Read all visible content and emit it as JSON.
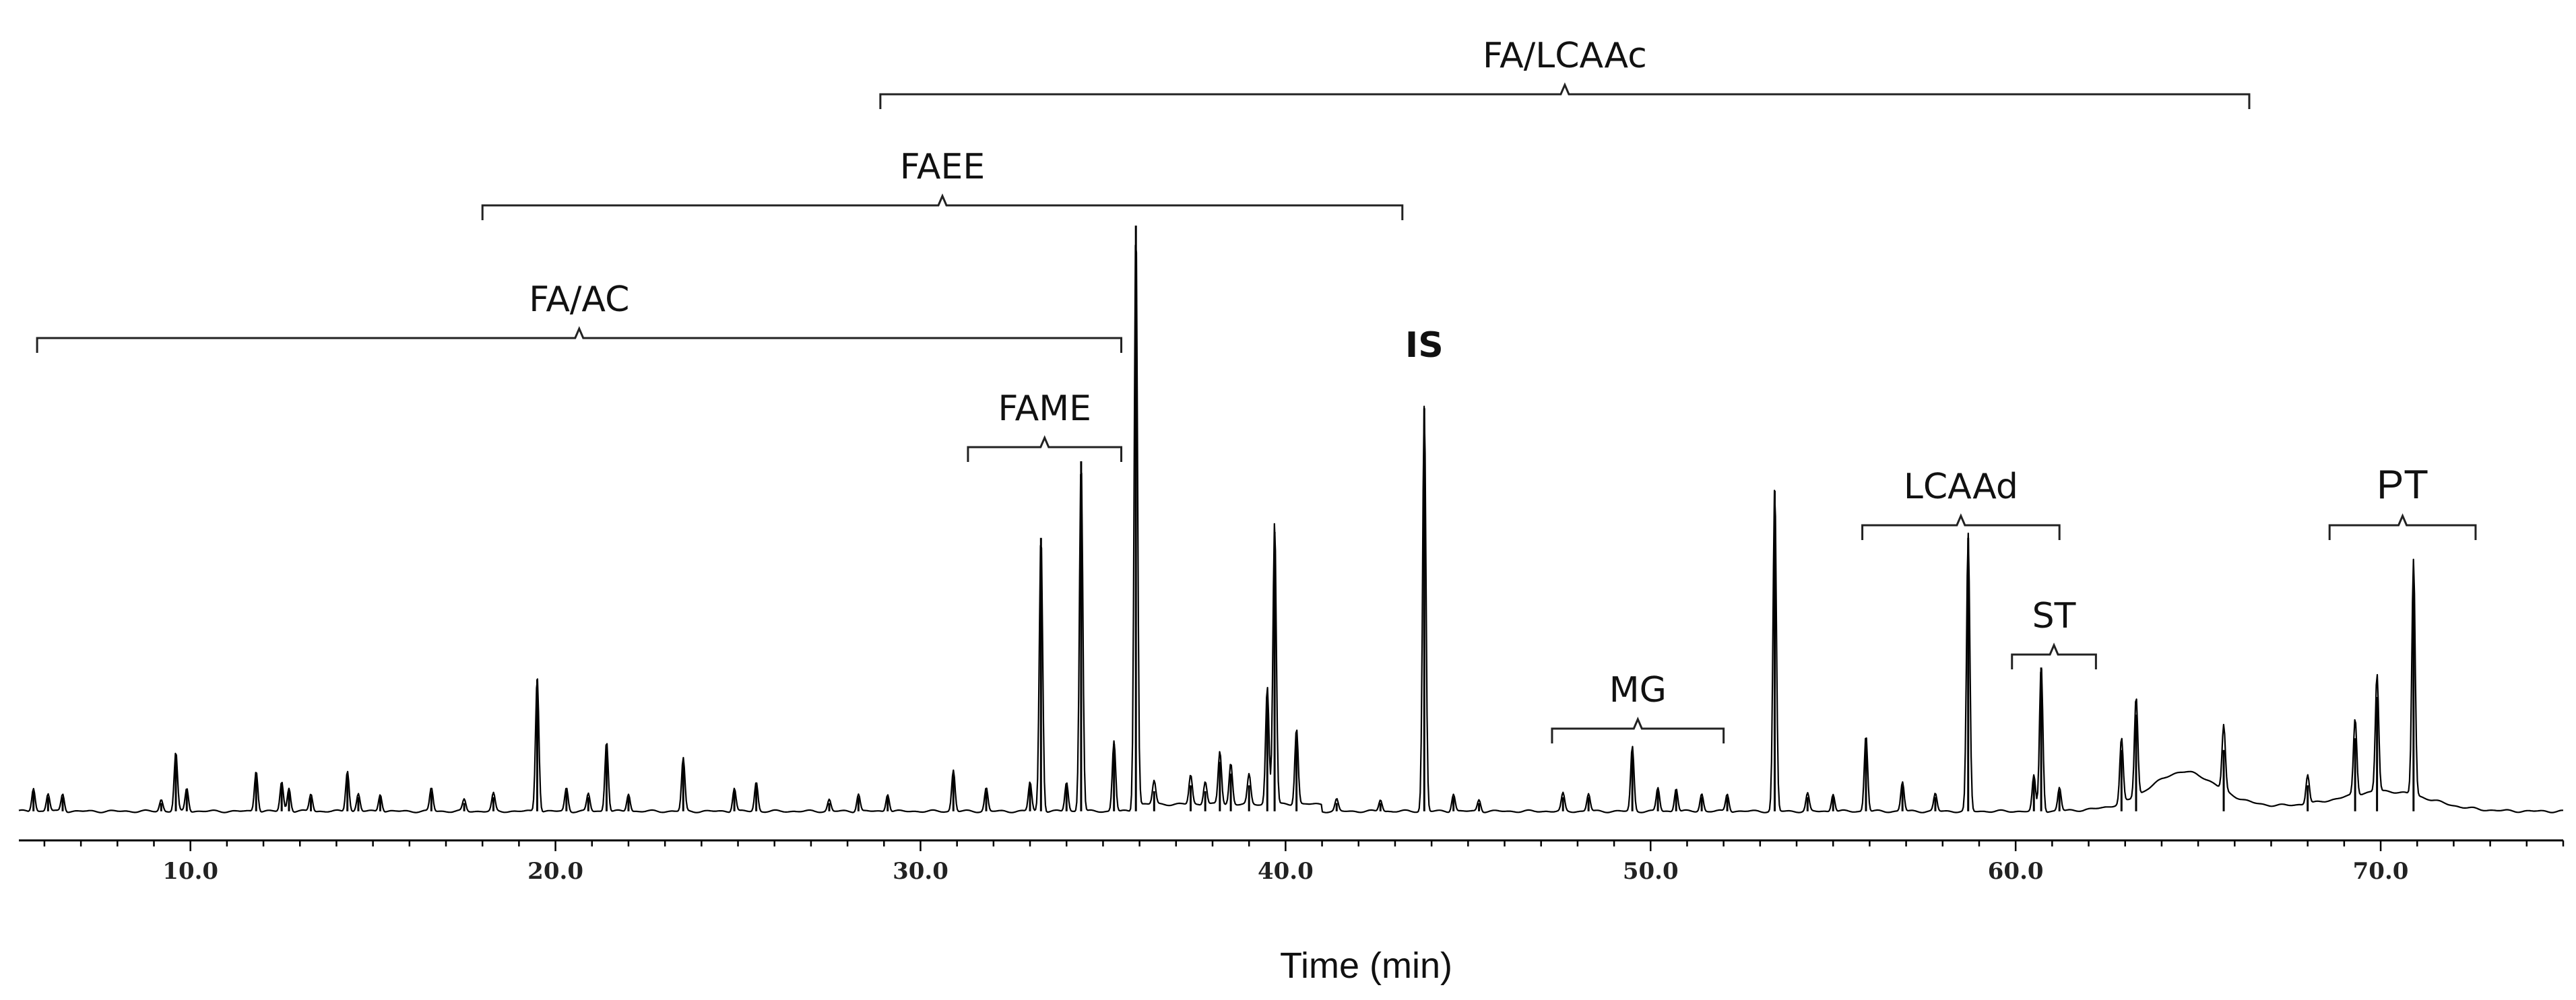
{
  "chart_data": {
    "type": "line",
    "title": "",
    "xlabel": "Time (min)",
    "ylabel": "",
    "xlim": [
      5.3,
      75.0
    ],
    "ylim": [
      0,
      100
    ],
    "grid": false,
    "legend": "none",
    "line_color": "#000000",
    "x_ticks": [
      {
        "value": 10.0,
        "label": "10.0"
      },
      {
        "value": 20.0,
        "label": "20.0"
      },
      {
        "value": 30.0,
        "label": "30.0"
      },
      {
        "value": 40.0,
        "label": "40.0"
      },
      {
        "value": 50.0,
        "label": "50.0"
      },
      {
        "value": 60.0,
        "label": "60.0"
      },
      {
        "value": 70.0,
        "label": "70.0"
      }
    ],
    "peaks": [
      {
        "x": 5.7,
        "y": 4
      },
      {
        "x": 6.1,
        "y": 3
      },
      {
        "x": 6.5,
        "y": 3
      },
      {
        "x": 9.2,
        "y": 2
      },
      {
        "x": 9.6,
        "y": 10
      },
      {
        "x": 9.9,
        "y": 4
      },
      {
        "x": 11.8,
        "y": 7
      },
      {
        "x": 12.5,
        "y": 5
      },
      {
        "x": 12.7,
        "y": 4
      },
      {
        "x": 13.3,
        "y": 3
      },
      {
        "x": 14.3,
        "y": 7
      },
      {
        "x": 14.6,
        "y": 3
      },
      {
        "x": 15.2,
        "y": 3
      },
      {
        "x": 16.6,
        "y": 4
      },
      {
        "x": 17.5,
        "y": 2
      },
      {
        "x": 18.3,
        "y": 3
      },
      {
        "x": 19.5,
        "y": 23
      },
      {
        "x": 20.3,
        "y": 4
      },
      {
        "x": 20.9,
        "y": 3
      },
      {
        "x": 21.4,
        "y": 12
      },
      {
        "x": 22.0,
        "y": 3
      },
      {
        "x": 23.5,
        "y": 9
      },
      {
        "x": 24.9,
        "y": 4
      },
      {
        "x": 25.5,
        "y": 5
      },
      {
        "x": 27.5,
        "y": 2
      },
      {
        "x": 28.3,
        "y": 3
      },
      {
        "x": 29.1,
        "y": 3
      },
      {
        "x": 30.9,
        "y": 7
      },
      {
        "x": 31.8,
        "y": 4
      },
      {
        "x": 33.0,
        "y": 5
      },
      {
        "x": 33.3,
        "y": 47
      },
      {
        "x": 34.0,
        "y": 5
      },
      {
        "x": 34.4,
        "y": 60
      },
      {
        "x": 35.3,
        "y": 12
      },
      {
        "x": 35.9,
        "y": 100
      },
      {
        "x": 36.4,
        "y": 4
      },
      {
        "x": 37.4,
        "y": 5
      },
      {
        "x": 37.8,
        "y": 4
      },
      {
        "x": 38.2,
        "y": 9
      },
      {
        "x": 38.5,
        "y": 7
      },
      {
        "x": 39.0,
        "y": 5
      },
      {
        "x": 39.5,
        "y": 20
      },
      {
        "x": 39.7,
        "y": 48
      },
      {
        "x": 40.3,
        "y": 13
      },
      {
        "x": 41.4,
        "y": 2
      },
      {
        "x": 42.6,
        "y": 2
      },
      {
        "x": 43.8,
        "y": 69
      },
      {
        "x": 44.6,
        "y": 3
      },
      {
        "x": 45.3,
        "y": 2
      },
      {
        "x": 47.6,
        "y": 3
      },
      {
        "x": 48.3,
        "y": 3
      },
      {
        "x": 49.5,
        "y": 11
      },
      {
        "x": 50.2,
        "y": 4
      },
      {
        "x": 50.7,
        "y": 4
      },
      {
        "x": 51.4,
        "y": 3
      },
      {
        "x": 52.1,
        "y": 3
      },
      {
        "x": 53.4,
        "y": 55
      },
      {
        "x": 54.3,
        "y": 3
      },
      {
        "x": 55.0,
        "y": 3
      },
      {
        "x": 55.9,
        "y": 13
      },
      {
        "x": 56.9,
        "y": 5
      },
      {
        "x": 57.8,
        "y": 3
      },
      {
        "x": 58.7,
        "y": 47
      },
      {
        "x": 60.5,
        "y": 6
      },
      {
        "x": 60.7,
        "y": 25
      },
      {
        "x": 61.2,
        "y": 4
      },
      {
        "x": 62.9,
        "y": 11
      },
      {
        "x": 63.3,
        "y": 17
      },
      {
        "x": 65.7,
        "y": 11
      },
      {
        "x": 68.0,
        "y": 5
      },
      {
        "x": 69.3,
        "y": 13
      },
      {
        "x": 69.9,
        "y": 20
      },
      {
        "x": 70.9,
        "y": 40
      }
    ],
    "humps": [
      {
        "x": 64.6,
        "y": 6,
        "w": 0.9
      },
      {
        "x": 70.2,
        "y": 3,
        "w": 1.2
      }
    ],
    "annotations": [
      {
        "label": "FA/LCAAc",
        "type": "bracket",
        "x_start": 28.9,
        "x_end": 66.4,
        "level": 1
      },
      {
        "label": "FAEE",
        "type": "bracket",
        "x_start": 18.0,
        "x_end": 43.2,
        "level": 2
      },
      {
        "label": "FA/AC",
        "type": "bracket",
        "x_start": 5.8,
        "x_end": 35.5,
        "level": 3
      },
      {
        "label": "FAME",
        "type": "bracket",
        "x_start": 31.3,
        "x_end": 35.5,
        "level": 4
      },
      {
        "label": "IS",
        "type": "peak-label",
        "x": 43.8
      },
      {
        "label": "LCAAd",
        "type": "bracket",
        "x_start": 55.8,
        "x_end": 61.2,
        "level": 5
      },
      {
        "label": "MG",
        "type": "bracket",
        "x_start": 47.3,
        "x_end": 52.0,
        "level": 7
      },
      {
        "label": "ST",
        "type": "bracket",
        "x_start": 59.9,
        "x_end": 62.2,
        "level": 6
      },
      {
        "label": "PT",
        "type": "bracket",
        "x_start": 68.6,
        "x_end": 72.6,
        "level": 5
      }
    ]
  }
}
